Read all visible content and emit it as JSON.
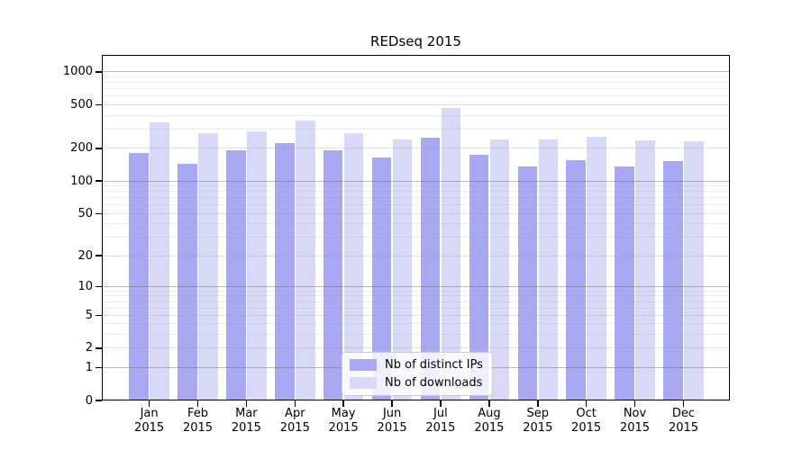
{
  "chart_data": {
    "type": "bar",
    "title": "REDseq 2015",
    "year_label": "2015",
    "categories": [
      "Jan",
      "Feb",
      "Mar",
      "Apr",
      "May",
      "Jun",
      "Jul",
      "Aug",
      "Sep",
      "Oct",
      "Nov",
      "Dec"
    ],
    "series": [
      {
        "name": "Nb of distinct IPs",
        "color": "#a8a8f3",
        "values": [
          180,
          145,
          193,
          222,
          191,
          164,
          250,
          173,
          136,
          156,
          136,
          152
        ]
      },
      {
        "name": "Nb of downloads",
        "color": "#d8d8f7",
        "values": [
          345,
          273,
          287,
          356,
          276,
          243,
          470,
          240,
          240,
          256,
          236,
          232
        ]
      }
    ],
    "xlabel": "",
    "ylabel": "",
    "yscale": "log1p",
    "ylim": [
      0,
      1430
    ],
    "yticks": [
      1000,
      500,
      200,
      100,
      50,
      20,
      10,
      5,
      2,
      1,
      0
    ],
    "grid": true,
    "legend_position": "lower center",
    "axis_color": "#000000",
    "grid_color_decade": "#b4b4b4",
    "grid_color_labeled": "#dedede",
    "grid_color_minor": "#efefef"
  }
}
